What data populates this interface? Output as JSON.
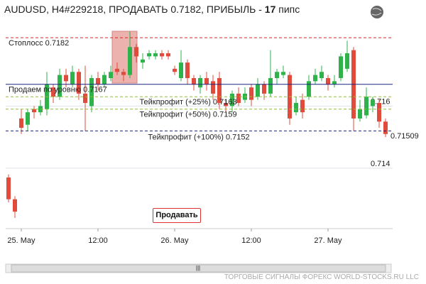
{
  "header": {
    "title": "AUDUSD, H4#229218, ПРОДАВАТЬ 0.7182, ПРИБЫЛЬ -",
    "profit": 17,
    "unit": "пипс"
  },
  "chart_data": {
    "type": "candlestick",
    "categories": [
      null,
      null,
      "25. May",
      null,
      null,
      null,
      null,
      null,
      null,
      null,
      null,
      null,
      null,
      null,
      "12:00",
      null,
      null,
      null,
      null,
      null,
      null,
      null,
      null,
      null,
      null,
      null,
      "26. May",
      null,
      null,
      null,
      null,
      null,
      null,
      null,
      null,
      null,
      null,
      null,
      "12:00",
      null,
      null,
      null,
      null,
      null,
      null,
      null,
      null,
      null,
      null,
      null,
      "27. May",
      null,
      null,
      null,
      null,
      null,
      null,
      null,
      null,
      null
    ],
    "open": [
      0.7137,
      0.713,
      0.7156,
      0.7154,
      0.7159,
      0.7158,
      0.7159,
      0.7166,
      0.7163,
      0.717,
      0.7167,
      0.7171,
      0.7164,
      0.716,
      0.7169,
      0.7167,
      0.7169,
      0.7172,
      0.7171,
      0.717,
      0.7179,
      0.7174,
      0.7176,
      0.7176,
      0.7177,
      0.7177,
      0.7172,
      0.7169,
      0.7174,
      0.7169,
      0.7166,
      0.7169,
      0.7168,
      0.7169,
      0.7161,
      0.716,
      0.7164,
      0.7162,
      0.7166,
      0.7163,
      0.7167,
      0.7164,
      0.7169,
      0.717,
      0.717,
      0.7158,
      0.7162,
      0.7163,
      0.7168,
      0.7169,
      0.7169,
      0.7167,
      0.7169,
      0.7172,
      0.7178,
      0.7156,
      0.7157,
      0.716,
      0.7161,
      0.7155
    ],
    "high": [
      0.7138,
      0.7131,
      0.7159,
      0.7159,
      0.716,
      0.7162,
      0.7171,
      0.7167,
      0.7172,
      0.7172,
      0.7173,
      0.7172,
      0.7173,
      0.717,
      0.7171,
      0.7171,
      0.7173,
      0.7174,
      0.7172,
      0.7184,
      0.718,
      0.7177,
      0.7178,
      0.7178,
      0.7178,
      0.7178,
      0.7173,
      0.7178,
      0.7175,
      0.717,
      0.717,
      0.7171,
      0.717,
      0.7171,
      0.7162,
      0.7165,
      0.7166,
      0.7166,
      0.7167,
      0.7169,
      0.7168,
      0.7178,
      0.7172,
      0.7173,
      0.7171,
      0.7163,
      0.7164,
      0.717,
      0.7172,
      0.7173,
      0.717,
      0.717,
      0.7177,
      0.7181,
      0.7179,
      0.7162,
      0.7166,
      0.7163,
      0.7162,
      0.7156
    ],
    "low": [
      0.7129,
      0.7124,
      0.7151,
      0.7152,
      0.7156,
      0.7157,
      0.7157,
      0.7161,
      0.7162,
      0.7166,
      0.7166,
      0.7162,
      0.7152,
      0.7158,
      0.7165,
      0.7166,
      0.7168,
      0.717,
      0.7168,
      0.7169,
      0.7174,
      0.7172,
      0.7175,
      0.7175,
      0.7175,
      0.7175,
      0.717,
      0.7168,
      0.7167,
      0.7165,
      0.7164,
      0.7165,
      0.7162,
      0.7159,
      0.7158,
      0.7158,
      0.716,
      0.7161,
      0.716,
      0.7162,
      0.7162,
      0.7163,
      0.7167,
      0.7169,
      0.7154,
      0.7157,
      0.7156,
      0.7162,
      0.7167,
      0.7168,
      0.7165,
      0.7166,
      0.7168,
      0.7171,
      0.7152,
      0.7155,
      0.7156,
      0.7158,
      0.7153,
      0.715
    ],
    "close": [
      0.713,
      0.7126,
      0.7153,
      0.7158,
      0.7158,
      0.716,
      0.7167,
      0.7163,
      0.717,
      0.7168,
      0.7171,
      0.7164,
      0.7161,
      0.7169,
      0.7167,
      0.717,
      0.7171,
      0.7171,
      0.717,
      0.7179,
      0.7176,
      0.7175,
      0.7177,
      0.7177,
      0.7176,
      0.7176,
      0.7171,
      0.7174,
      0.7169,
      0.7167,
      0.7169,
      0.7167,
      0.7164,
      0.7161,
      0.716,
      0.7164,
      0.7161,
      0.7164,
      0.7162,
      0.7167,
      0.7164,
      0.7169,
      0.7171,
      0.7171,
      0.7156,
      0.7161,
      0.7158,
      0.7168,
      0.717,
      0.7171,
      0.7167,
      0.7168,
      0.7176,
      0.7177,
      0.7156,
      0.7159,
      0.7163,
      0.7162,
      0.7155,
      0.7151
    ],
    "up_color": "#2db34a",
    "down_color": "#e04b3b",
    "ylim": [
      0.7121,
      0.7185
    ],
    "yticks": [
      0.716,
      0.714
    ],
    "grid": true,
    "last_price": 0.71509,
    "levels": [
      {
        "value": 0.7182,
        "label": "Стоплосс 0.7182",
        "color": "#d42a2a",
        "style": "dashed"
      },
      {
        "value": 0.7167,
        "label": "Продаем по уровню 0.7167",
        "color": "#1a237e",
        "style": "solid"
      },
      {
        "value": 0.7163,
        "label": "Тейкпрофит (+25%) 0.7163",
        "color": "#8fbf3a",
        "style": "dashed"
      },
      {
        "value": 0.7159,
        "label": "Тейкпрофит (+50%) 0.7159",
        "color": "#8fbf3a",
        "style": "dashed"
      },
      {
        "value": 0.7152,
        "label": "Тейкпрофит (+100%) 0.7152",
        "color": "#1a237e",
        "style": "dashed"
      }
    ]
  },
  "button": "Продавать",
  "footer": "ТОРГОВЫЕ СИГНАЛЫ ФОРЕКС WORLD-STOCKS.RU LLC"
}
